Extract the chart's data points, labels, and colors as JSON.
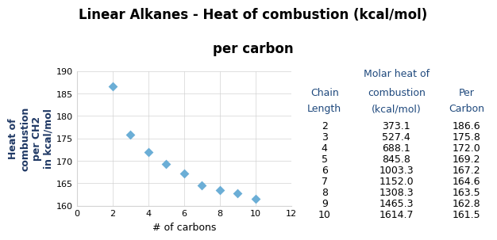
{
  "title_line1": "Linear Alkanes - Heat of combustion (kcal/mol)",
  "title_line2": "per carbon",
  "xlabel": "# of carbons",
  "ylabel": "Heat of\ncombustion\nper CH2\nin kcal/mol",
  "x": [
    2,
    3,
    4,
    5,
    6,
    7,
    8,
    9,
    10
  ],
  "y": [
    186.6,
    175.8,
    172.0,
    169.2,
    167.2,
    164.6,
    163.5,
    162.8,
    161.5
  ],
  "xlim": [
    0,
    12
  ],
  "ylim": [
    160.0,
    190.0
  ],
  "yticks": [
    160.0,
    165.0,
    170.0,
    175.0,
    180.0,
    185.0,
    190.0
  ],
  "xticks": [
    0,
    2,
    4,
    6,
    8,
    10,
    12
  ],
  "marker_color": "#6baed6",
  "marker_style": "D",
  "marker_size": 6,
  "table_chain": [
    2,
    3,
    4,
    5,
    6,
    7,
    8,
    9,
    10
  ],
  "table_molar": [
    "373.1",
    "527.4",
    "688.1",
    "845.8",
    "1003.3",
    "1152.0",
    "1308.3",
    "1465.3",
    "1614.7"
  ],
  "table_per_carbon": [
    "186.6",
    "175.8",
    "172.0",
    "169.2",
    "167.2",
    "164.6",
    "163.5",
    "162.8",
    "161.5"
  ],
  "table_header_line1": "Molar heat of",
  "table_header_chain": "Chain",
  "table_header_combustion": "combustion",
  "table_header_per": "Per",
  "table_header_length": "Length",
  "table_header_kcal": "(kcal/mol)",
  "table_header_carbon": "Carbon",
  "header_color": "#1f497d",
  "data_color_molar": "#000000",
  "data_color_chain": "#000000",
  "data_color_per": "#000000",
  "bg_color": "#ffffff",
  "title_fontsize": 12,
  "axis_label_fontsize": 9,
  "tick_fontsize": 8,
  "ylabel_color": "#1f3864",
  "table_fontsize": 9
}
